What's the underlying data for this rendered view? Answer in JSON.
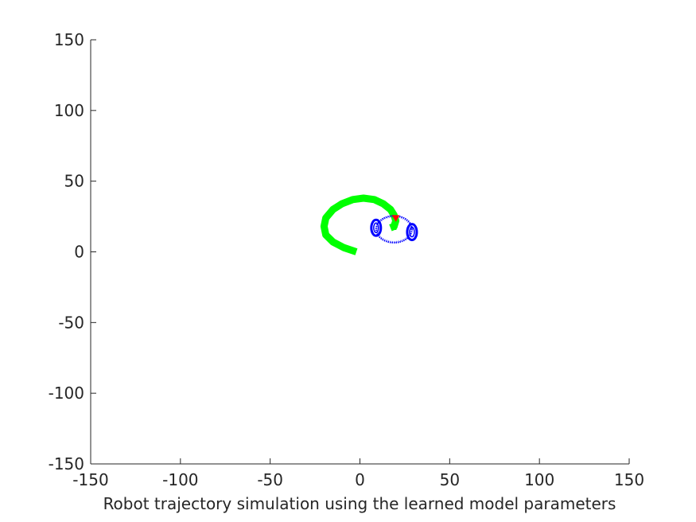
{
  "chart_data": {
    "type": "line",
    "title": "",
    "xlabel": "Robot trajectory simulation using the learned model parameters",
    "ylabel": "",
    "xlim": [
      -150,
      150
    ],
    "ylim": [
      -150,
      150
    ],
    "xticks": [
      "-150",
      "-100",
      "-50",
      "0",
      "50",
      "100",
      "150"
    ],
    "yticks": [
      "-150",
      "-100",
      "-50",
      "0",
      "50",
      "100",
      "150"
    ],
    "grid": false,
    "legend": "none",
    "colors": {
      "trajectory": "#00ff00",
      "robot_body": "#0000ff",
      "robot_heading": "#ff0000",
      "axis": "#262626"
    },
    "series": [
      {
        "role": "trajectory",
        "color": "#00ff00",
        "points": [
          [
            -2,
            0
          ],
          [
            -9,
            3
          ],
          [
            -15,
            7
          ],
          [
            -19,
            12
          ],
          [
            -20,
            18
          ],
          [
            -19,
            24
          ],
          [
            -15,
            30
          ],
          [
            -10,
            34
          ],
          [
            -4,
            37
          ],
          [
            2,
            38
          ],
          [
            8,
            37
          ],
          [
            13,
            34
          ],
          [
            17,
            30
          ],
          [
            19,
            26
          ],
          [
            20,
            22
          ],
          [
            19,
            18
          ],
          [
            17,
            17
          ]
        ]
      },
      {
        "role": "robot_body",
        "color": "#0000ff",
        "center": [
          19,
          16
        ],
        "radius": 10,
        "wheels": [
          [
            9,
            17
          ],
          [
            29,
            14
          ]
        ]
      },
      {
        "role": "robot_heading",
        "color": "#ff0000",
        "point": [
          20,
          24
        ]
      }
    ]
  }
}
